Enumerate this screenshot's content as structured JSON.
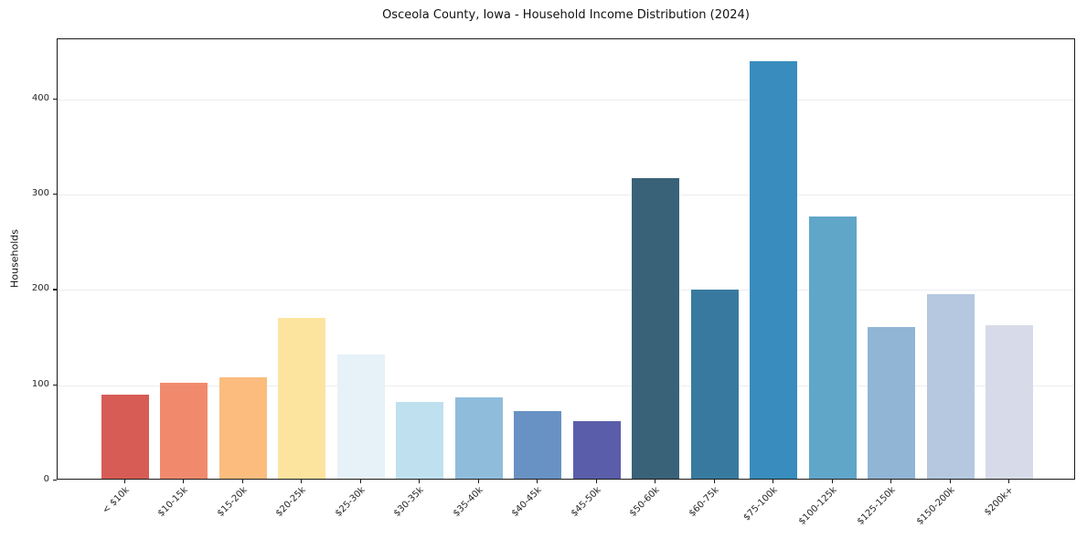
{
  "chart_data": {
    "type": "bar",
    "title": "Osceola County, Iowa - Household Income Distribution (2024)",
    "xlabel": "",
    "ylabel": "Households",
    "categories": [
      "< $10k",
      "$10-15k",
      "$15-20k",
      "$20-25k",
      "$25-30k",
      "$30-35k",
      "$35-40k",
      "$40-45k",
      "$45-50k",
      "$50-60k",
      "$60-75k",
      "$75-100k",
      "$100-125k",
      "$125-150k",
      "$150-200k",
      "$200k+"
    ],
    "values": [
      88,
      101,
      106,
      169,
      130,
      81,
      85,
      71,
      60,
      315,
      198,
      438,
      275,
      159,
      194,
      161
    ],
    "bar_colors": [
      "#d65c55",
      "#f18a6d",
      "#fbbc7e",
      "#fde49e",
      "#e6f2f7",
      "#bfe0ee",
      "#90bcdc",
      "#6992c4",
      "#5a5daa",
      "#396279",
      "#387a9f",
      "#388dbe",
      "#60a6c8",
      "#90b5d5",
      "#b5c8e0",
      "#d7dae8"
    ],
    "yticks": [
      0,
      100,
      200,
      300,
      400
    ],
    "ylim": [
      0,
      463
    ],
    "grid": "horizontal",
    "legend": "none",
    "frame_color": "#1a1a1a",
    "gridline_color": "#ededf0",
    "background_color": "#ffffff"
  }
}
